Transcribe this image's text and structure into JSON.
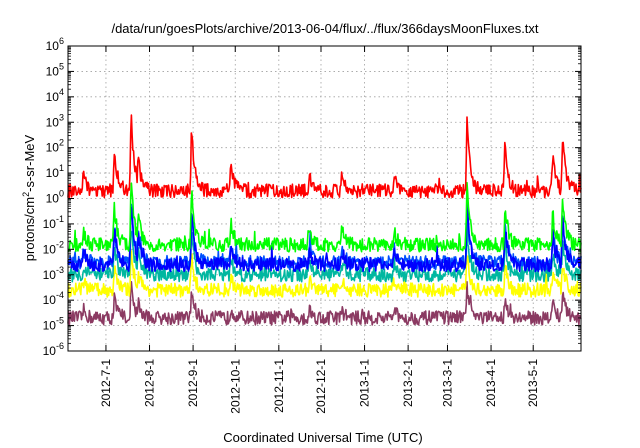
{
  "chart_data": {
    "type": "line",
    "title": "/data/run/goesPlots/archive/2013-06-04/flux/../flux/366daysMoonFluxes.txt",
    "xlabel": "Coordinated Universal Time (UTC)",
    "ylabel": {
      "base": "protons/cm",
      "sup": "2",
      "rest": "-s-sr-MeV"
    },
    "yscale": "log",
    "ylim_exponent": [
      -6,
      6
    ],
    "y_ticks": [
      {
        "base": "10",
        "exp": "-6",
        "value": 1e-06
      },
      {
        "base": "10",
        "exp": "-5",
        "value": 1e-05
      },
      {
        "base": "10",
        "exp": "-4",
        "value": 0.0001
      },
      {
        "base": "10",
        "exp": "-3",
        "value": 0.001
      },
      {
        "base": "10",
        "exp": "-2",
        "value": 0.01
      },
      {
        "base": "10",
        "exp": "-1",
        "value": 0.1
      },
      {
        "base": "10",
        "exp": "0",
        "value": 1
      },
      {
        "base": "10",
        "exp": "1",
        "value": 10
      },
      {
        "base": "10",
        "exp": "2",
        "value": 100
      },
      {
        "base": "10",
        "exp": "3",
        "value": 1000
      },
      {
        "base": "10",
        "exp": "4",
        "value": 10000
      },
      {
        "base": "10",
        "exp": "5",
        "value": 100000
      },
      {
        "base": "10",
        "exp": "6",
        "value": 1000000
      }
    ],
    "xlim": [
      "2012-06-04",
      "2013-06-04"
    ],
    "x_ticks": [
      {
        "label": "2012-7-1",
        "date": "2012-07-01"
      },
      {
        "label": "2012-8-1",
        "date": "2012-08-01"
      },
      {
        "label": "2012-9-1",
        "date": "2012-09-01"
      },
      {
        "label": "2012-10-1",
        "date": "2012-10-01"
      },
      {
        "label": "2012-11-1",
        "date": "2012-11-01"
      },
      {
        "label": "2012-12-1",
        "date": "2012-12-01"
      },
      {
        "label": "2013-1-1",
        "date": "2013-01-01"
      },
      {
        "label": "2013-2-1",
        "date": "2013-02-01"
      },
      {
        "label": "2013-3-1",
        "date": "2013-03-01"
      },
      {
        "label": "2013-4-1",
        "date": "2013-04-01"
      },
      {
        "label": "2013-5-1",
        "date": "2013-05-01"
      }
    ],
    "grid": true,
    "legend": "none",
    "series": [
      {
        "color": "#8b3a62",
        "baseline": 2e-05,
        "peak_scale": 0.15
      },
      {
        "color": "#ffff00",
        "baseline": 0.00025,
        "peak_scale": 0.25
      },
      {
        "color": "#00b7a0",
        "baseline": 0.001,
        "peak_scale": 0.45
      },
      {
        "color": "#0050ff",
        "baseline": 0.003,
        "peak_scale": 0.7
      },
      {
        "color": "#0000ff",
        "baseline": 0.0025,
        "peak_scale": 0.75
      },
      {
        "color": "#00ff00",
        "baseline": 0.015,
        "peak_scale": 0.8
      },
      {
        "color": "#ff0000",
        "baseline": 2,
        "peak_scale": 1.0
      }
    ],
    "events": [
      {
        "date": "2012-06-15",
        "peak": 10
      },
      {
        "date": "2012-07-07",
        "peak": 100
      },
      {
        "date": "2012-07-19",
        "peak": 2000
      },
      {
        "date": "2012-07-24",
        "peak": 50
      },
      {
        "date": "2012-08-31",
        "peak": 600
      },
      {
        "date": "2012-09-28",
        "peak": 20
      },
      {
        "date": "2012-11-23",
        "peak": 10
      },
      {
        "date": "2012-12-16",
        "peak": 10
      },
      {
        "date": "2013-01-22",
        "peak": 10
      },
      {
        "date": "2013-03-15",
        "peak": 1000
      },
      {
        "date": "2013-04-11",
        "peak": 150
      },
      {
        "date": "2013-05-15",
        "peak": 50
      },
      {
        "date": "2013-05-22",
        "peak": 300
      }
    ]
  }
}
